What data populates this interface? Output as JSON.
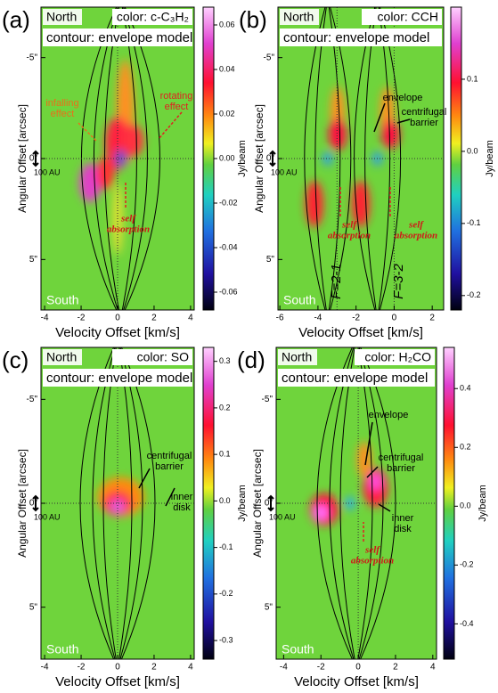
{
  "chart_data": [
    {
      "type": "heatmap",
      "panel_label": "(a)",
      "north": "North",
      "south": "South",
      "color_label": "color: c-C₃H₂",
      "contour_label": "contour: envelope model",
      "xlabel": "Velocity Offset [km/s]",
      "ylabel": "Angular Offset [arcsec]",
      "xlim": [
        -4.2,
        4.2
      ],
      "xticks": [
        -4,
        -2,
        0,
        2,
        4
      ],
      "ylim": [
        -7.5,
        7.5
      ],
      "yticks": [
        {
          "value": -5,
          "label": "-5\""
        },
        {
          "value": 0,
          "label": "0\""
        },
        {
          "value": 5,
          "label": "5\""
        }
      ],
      "colorbar": {
        "label": "Jy/beam",
        "lim": [
          -0.068,
          0.068
        ],
        "ticks": [
          0.06,
          0.04,
          0.02,
          {
            "value": 0,
            "label": "0.00"
          },
          -0.02,
          -0.04,
          -0.06
        ]
      },
      "scale_label": "100 AU",
      "annotations": [
        {
          "lines": [
            "infalling",
            "effect"
          ],
          "color": "#e8701a"
        },
        {
          "lines": [
            "rotating",
            "effect"
          ],
          "color": "#e02020"
        },
        {
          "lines": [
            "self",
            "absorption"
          ],
          "color": "#d01818"
        }
      ]
    },
    {
      "type": "heatmap",
      "panel_label": "(b)",
      "north": "North",
      "south": "South",
      "color_label": "color: CCH",
      "contour_label": "contour: envelope model",
      "xlabel": "Velocity Offset [km/s]",
      "ylabel": "Angular Offset [arcsec]",
      "xlim": [
        -6.1,
        2.6
      ],
      "xticks": [
        -6,
        -4,
        -2,
        0,
        2
      ],
      "ylim": [
        -7.5,
        7.5
      ],
      "yticks": [
        {
          "value": -5,
          "label": "-5\""
        },
        {
          "value": 0,
          "label": "0\""
        },
        {
          "value": 5,
          "label": "5\""
        }
      ],
      "colorbar": {
        "label": "Jy/beam",
        "lim": [
          -0.22,
          0.2
        ],
        "ticks": [
          0.1,
          {
            "value": 0,
            "label": "0.0"
          },
          -0.1,
          -0.2
        ]
      },
      "scale_label": "100 AU",
      "annotations": [
        {
          "lines": [
            "envelope"
          ],
          "color": "#000000"
        },
        {
          "lines": [
            "centrifugal",
            "barrier"
          ],
          "color": "#000000"
        },
        {
          "lines": [
            "self",
            "absorption"
          ],
          "color": "#d01818"
        },
        {
          "lines": [
            "self",
            "absorption"
          ],
          "color": "#d01818"
        },
        {
          "lines": [
            "F=2-1"
          ],
          "color": "#000000"
        },
        {
          "lines": [
            "F=3-2"
          ],
          "color": "#000000"
        }
      ]
    },
    {
      "type": "heatmap",
      "panel_label": "(c)",
      "north": "North",
      "south": "South",
      "color_label": "color: SO",
      "contour_label": "contour: envelope model",
      "xlabel": "Velocity Offset [km/s]",
      "ylabel": "Angular Offset [arcsec]",
      "xlim": [
        -4.2,
        4.2
      ],
      "xticks": [
        -4,
        -2,
        0,
        2,
        4
      ],
      "ylim": [
        -7.5,
        7.5
      ],
      "yticks": [
        {
          "value": -5,
          "label": "-5\""
        },
        {
          "value": 0,
          "label": "0\""
        },
        {
          "value": 5,
          "label": "5\""
        }
      ],
      "colorbar": {
        "label": "Jy/beam",
        "lim": [
          -0.34,
          0.33
        ],
        "ticks": [
          0.3,
          0.2,
          0.1,
          {
            "value": 0,
            "label": "0.0"
          },
          -0.1,
          -0.2,
          -0.3
        ]
      },
      "scale_label": "100 AU",
      "annotations": [
        {
          "lines": [
            "centrifugal",
            "barrier"
          ],
          "color": "#000000"
        },
        {
          "lines": [
            "inner",
            "disk"
          ],
          "color": "#000000"
        }
      ]
    },
    {
      "type": "heatmap",
      "panel_label": "(d)",
      "north": "North",
      "south": "South",
      "color_label": "color: H₂CO",
      "contour_label": "contour: envelope model",
      "xlabel": "Velocity Offset [km/s]",
      "ylabel": "Angular Offset [arcsec]",
      "xlim": [
        -4.4,
        4.2
      ],
      "xticks": [
        -4,
        -2,
        0,
        2,
        4
      ],
      "ylim": [
        -7.5,
        7.5
      ],
      "yticks": [
        {
          "value": -5,
          "label": "-5\""
        },
        {
          "value": 0,
          "label": "0\""
        },
        {
          "value": 5,
          "label": "5\""
        }
      ],
      "colorbar": {
        "label": "Jy/beam",
        "lim": [
          -0.52,
          0.54
        ],
        "ticks": [
          0.4,
          0.2,
          {
            "value": 0,
            "label": "0.0"
          },
          -0.2,
          -0.4
        ]
      },
      "scale_label": "100 AU",
      "annotations": [
        {
          "lines": [
            "envelope"
          ],
          "color": "#000000"
        },
        {
          "lines": [
            "centrifugal",
            "barrier"
          ],
          "color": "#000000"
        },
        {
          "lines": [
            "inner",
            "disk"
          ],
          "color": "#000000"
        },
        {
          "lines": [
            "self",
            "absorption"
          ],
          "color": "#d01818"
        }
      ]
    }
  ]
}
